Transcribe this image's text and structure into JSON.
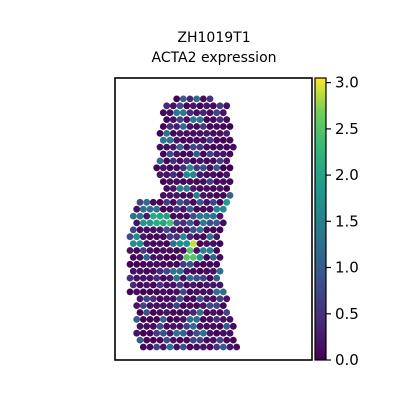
{
  "chart_data": {
    "type": "scatter",
    "subtype": "spatial-hex-spots",
    "title_lines": [
      "ZH1019T1",
      "ACTA2 expression"
    ],
    "xlabel": "",
    "ylabel": "",
    "grid": false,
    "colormap": "viridis",
    "colorbar": {
      "range": [
        0,
        3.05
      ],
      "ticks": [
        0.0,
        0.5,
        1.0,
        1.5,
        2.0,
        2.5,
        3.0
      ],
      "tick_labels": [
        "0.0",
        "0.5",
        "1.0",
        "1.5",
        "2.0",
        "2.5",
        "3.0"
      ],
      "location": "right"
    },
    "tissue_rows": [
      [
        4,
        0.29,
        0.49
      ],
      [
        5,
        0.22,
        0.58
      ],
      [
        6,
        0.22,
        0.6
      ],
      [
        7,
        0.21,
        0.6
      ],
      [
        8,
        0.2,
        0.61
      ],
      [
        9,
        0.19,
        0.6
      ],
      [
        10,
        0.2,
        0.6
      ],
      [
        11,
        0.22,
        0.59
      ],
      [
        12,
        0.08,
        0.57
      ],
      [
        13,
        0.06,
        0.56
      ],
      [
        14,
        0.05,
        0.55
      ],
      [
        15,
        0.05,
        0.54
      ],
      [
        16,
        0.04,
        0.54
      ],
      [
        17,
        0.04,
        0.55
      ],
      [
        18,
        0.05,
        0.56
      ],
      [
        19,
        0.08,
        0.58
      ],
      [
        20,
        0.08,
        0.6
      ],
      [
        21,
        0.08,
        0.62
      ],
      [
        22,
        0.09,
        0.64
      ],
      [
        23,
        0.1,
        0.65
      ],
      [
        24,
        0.1,
        0.64
      ],
      [
        25,
        0.11,
        0.62
      ],
      [
        26,
        0.14,
        0.61
      ],
      [
        27,
        0.16,
        0.6
      ],
      [
        28,
        0.17,
        0.58
      ],
      [
        29,
        0.17,
        0.57
      ],
      [
        30,
        0.18,
        0.56
      ],
      [
        31,
        0.2,
        0.55
      ],
      [
        32,
        0.23,
        0.54
      ],
      [
        33,
        0.28,
        0.52
      ]
    ],
    "high_expression_spots": [
      {
        "x": 0.7,
        "y": 0.2,
        "value": 1.6
      },
      {
        "x": 0.33,
        "y": 0.08,
        "value": 1.4
      },
      {
        "x": 0.26,
        "y": 0.18,
        "value": 1.3
      },
      {
        "x": 0.42,
        "y": 0.11,
        "value": 1.3
      },
      {
        "x": 0.2,
        "y": 0.25,
        "value": 1.2
      },
      {
        "x": 0.39,
        "y": 0.31,
        "value": 1.6
      },
      {
        "x": 0.35,
        "y": 0.38,
        "value": 1.4
      },
      {
        "x": 0.42,
        "y": 0.4,
        "value": 1.5
      },
      {
        "x": 0.15,
        "y": 0.45,
        "value": 1.2
      },
      {
        "x": 0.55,
        "y": 0.46,
        "value": 1.6
      },
      {
        "x": 0.62,
        "y": 0.43,
        "value": 1.9
      },
      {
        "x": 0.7,
        "y": 0.4,
        "value": 1.5
      },
      {
        "x": 0.1,
        "y": 0.48,
        "value": 1.3
      },
      {
        "x": 0.18,
        "y": 0.51,
        "value": 2.2
      },
      {
        "x": 0.21,
        "y": 0.5,
        "value": 2.1
      },
      {
        "x": 0.24,
        "y": 0.5,
        "value": 2.0
      },
      {
        "x": 0.27,
        "y": 0.51,
        "value": 2.4
      },
      {
        "x": 0.14,
        "y": 0.51,
        "value": 1.8
      },
      {
        "x": 0.09,
        "y": 0.58,
        "value": 1.7
      },
      {
        "x": 0.46,
        "y": 0.5,
        "value": 1.4
      },
      {
        "x": 0.36,
        "y": 0.58,
        "value": 1.7
      },
      {
        "x": 0.41,
        "y": 0.6,
        "value": 2.9
      },
      {
        "x": 0.39,
        "y": 0.63,
        "value": 2.5
      },
      {
        "x": 0.44,
        "y": 0.65,
        "value": 1.7
      },
      {
        "x": 0.49,
        "y": 0.62,
        "value": 1.5
      },
      {
        "x": 0.9,
        "y": 0.62,
        "value": 2.3
      },
      {
        "x": 0.93,
        "y": 0.65,
        "value": 1.8
      },
      {
        "x": 0.88,
        "y": 0.67,
        "value": 1.6
      },
      {
        "x": 0.8,
        "y": 0.58,
        "value": 1.3
      },
      {
        "x": 0.32,
        "y": 0.72,
        "value": 1.3
      },
      {
        "x": 0.68,
        "y": 0.72,
        "value": 1.2
      },
      {
        "x": 0.55,
        "y": 0.79,
        "value": 1.2
      },
      {
        "x": 0.66,
        "y": 0.86,
        "value": 1.3
      },
      {
        "x": 0.4,
        "y": 0.9,
        "value": 1.2
      },
      {
        "x": 0.47,
        "y": 0.95,
        "value": 1.2
      },
      {
        "x": 0.52,
        "y": 0.49,
        "value": 1.3
      }
    ]
  }
}
